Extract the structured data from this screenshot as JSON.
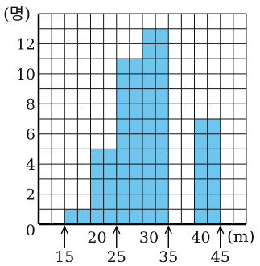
{
  "chart_data": {
    "type": "bar",
    "subtype": "histogram",
    "xlabel": "(m)",
    "ylabel": "(명)",
    "bins": [
      {
        "from": 15,
        "to": 20,
        "value": 1
      },
      {
        "from": 20,
        "to": 25,
        "value": 5
      },
      {
        "from": 25,
        "to": 30,
        "value": 11
      },
      {
        "from": 30,
        "to": 35,
        "value": 13
      },
      {
        "from": 35,
        "to": 40,
        "value": 0
      },
      {
        "from": 40,
        "to": 45,
        "value": 7
      }
    ],
    "xlim": [
      10,
      50
    ],
    "ylim": [
      0,
      14
    ],
    "y_ticks": [
      0,
      2,
      4,
      6,
      8,
      10,
      12
    ],
    "x_ticks_upper": [
      20,
      30,
      40
    ],
    "x_ticks_lower": [
      15,
      25,
      35,
      45
    ],
    "grid": true,
    "grid_step_x": 2.5,
    "grid_step_y": 1,
    "bar_color": "#6ec6ee",
    "grid_color": "#111111"
  }
}
